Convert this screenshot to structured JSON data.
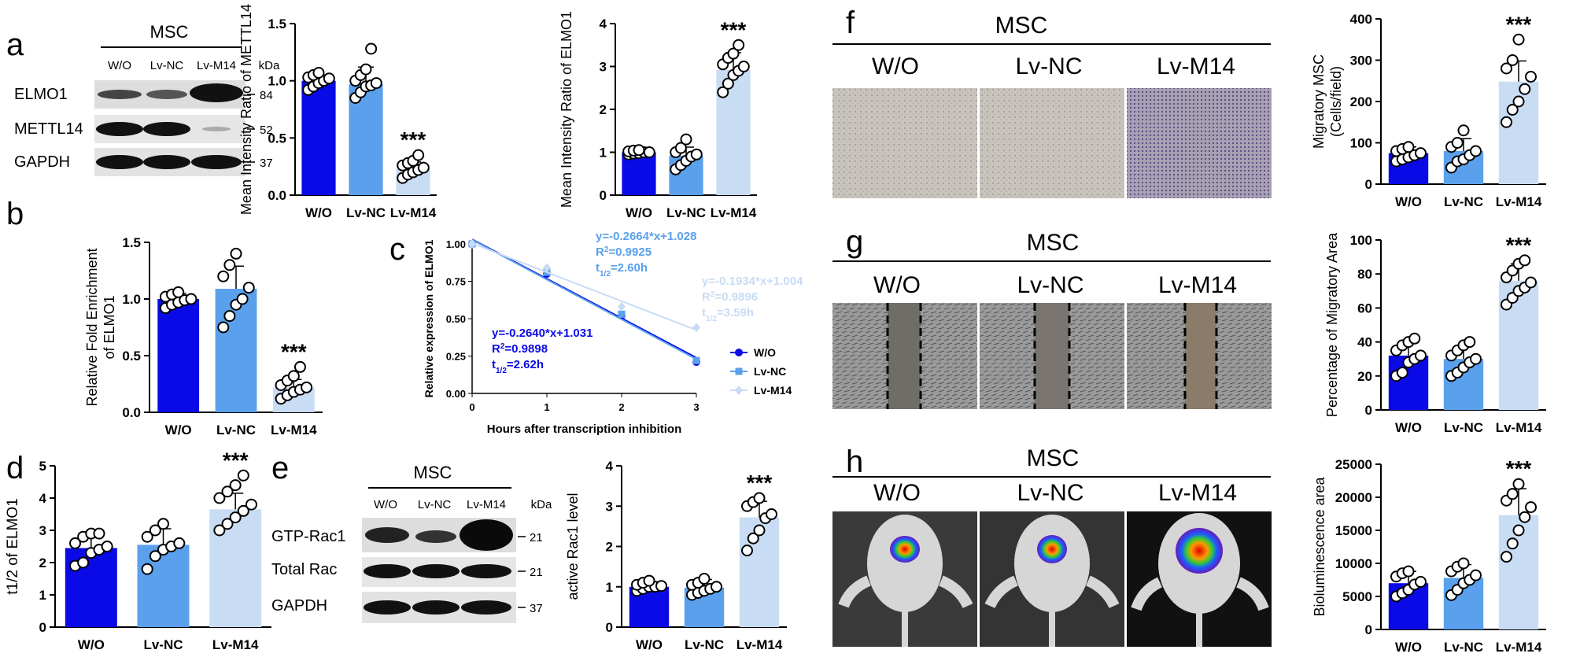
{
  "colors": {
    "wo": "#0a0ae6",
    "nc": "#5aa0ec",
    "m14": "#c8dcf4",
    "star": "#000000"
  },
  "panel_letters": [
    "a",
    "b",
    "c",
    "d",
    "e",
    "f",
    "g",
    "h"
  ],
  "blot_a": {
    "title": "MSC",
    "lanes": [
      "W/O",
      "Lv-NC",
      "Lv-M14"
    ],
    "kda_label": "kDa",
    "rows": [
      {
        "label": "ELMO1",
        "kda": "84"
      },
      {
        "label": "METTL14",
        "kda": "52"
      },
      {
        "label": "GAPDH",
        "kda": "37"
      }
    ]
  },
  "blot_e": {
    "title": "MSC",
    "lanes": [
      "W/O",
      "Lv-NC",
      "Lv-M14"
    ],
    "kda_label": "kDa",
    "rows": [
      {
        "label": "GTP-Rac1",
        "kda": "21"
      },
      {
        "label": "Total Rac",
        "kda": "21"
      },
      {
        "label": "GAPDH",
        "kda": "37"
      }
    ]
  },
  "images_f": {
    "title": "MSC",
    "lanes": [
      "W/O",
      "Lv-NC",
      "Lv-M14"
    ]
  },
  "images_g": {
    "title": "MSC",
    "lanes": [
      "W/O",
      "Lv-NC",
      "Lv-M14"
    ]
  },
  "images_h": {
    "title": "MSC",
    "lanes": [
      "W/O",
      "Lv-NC",
      "Lv-M14"
    ]
  },
  "chart_data": [
    {
      "id": "a1",
      "type": "bar",
      "categories": [
        "W/O",
        "Lv-NC",
        "Lv-M14"
      ],
      "values": [
        1.0,
        0.97,
        0.23
      ],
      "errors": [
        0.05,
        0.15,
        0.06
      ],
      "ylabel": "Mean Intensity Ratio of METTL14",
      "ylim": [
        0,
        1.5
      ],
      "yticks": [
        "0.0",
        "0.5",
        "1.0",
        "1.5"
      ],
      "star": "***",
      "star_index": 2,
      "points": [
        [
          0.92,
          0.95,
          0.98,
          1.0,
          1.02,
          1.03,
          1.05,
          1.07
        ],
        [
          0.85,
          0.9,
          0.95,
          0.96,
          0.98,
          1.0,
          1.05,
          1.1,
          1.28
        ],
        [
          0.15,
          0.18,
          0.2,
          0.22,
          0.24,
          0.26,
          0.28,
          0.3,
          0.35
        ]
      ]
    },
    {
      "id": "a2",
      "type": "bar",
      "categories": [
        "W/O",
        "Lv-NC",
        "Lv-M14"
      ],
      "values": [
        1.0,
        0.92,
        2.92
      ],
      "errors": [
        0.05,
        0.2,
        0.4
      ],
      "ylabel": "Mean Intensity Ratio of ELMO1",
      "ylim": [
        0,
        4
      ],
      "yticks": [
        "0",
        "1",
        "2",
        "3",
        "4"
      ],
      "star": "***",
      "star_index": 2,
      "points": [
        [
          0.95,
          0.97,
          0.98,
          1.0,
          1.0,
          1.02,
          1.04,
          1.05
        ],
        [
          0.6,
          0.7,
          0.8,
          0.9,
          0.95,
          1.0,
          1.1,
          1.3
        ],
        [
          2.4,
          2.6,
          2.8,
          2.9,
          3.0,
          3.05,
          3.2,
          3.3,
          3.5
        ]
      ]
    },
    {
      "id": "b",
      "type": "bar",
      "categories": [
        "W/O",
        "Lv-NC",
        "Lv-M14"
      ],
      "values": [
        1.0,
        1.09,
        0.22
      ],
      "errors": [
        0.05,
        0.2,
        0.07
      ],
      "ylabel": "Relative Fold Enrichment of ELMO1",
      "ylim": [
        0,
        1.5
      ],
      "yticks": [
        "0.0",
        "0.5",
        "1.0",
        "1.5"
      ],
      "star": "***",
      "star_index": 2,
      "points": [
        [
          0.92,
          0.95,
          0.97,
          0.99,
          1.0,
          1.02,
          1.04,
          1.06
        ],
        [
          0.75,
          0.85,
          0.95,
          1.0,
          1.1,
          1.2,
          1.3,
          1.4
        ],
        [
          0.12,
          0.15,
          0.18,
          0.2,
          0.22,
          0.24,
          0.28,
          0.32,
          0.4
        ]
      ]
    },
    {
      "id": "c",
      "type": "line",
      "xlabel": "Hours after transcription inhibition",
      "ylabel": "Relative expression of ELMO1",
      "x": [
        0,
        1,
        2,
        3
      ],
      "xlim": [
        0,
        3
      ],
      "ylim": [
        0,
        1
      ],
      "xticks": [
        "0",
        "1",
        "2",
        "3"
      ],
      "yticks": [
        "0.00",
        "0.25",
        "0.50",
        "0.75",
        "1.00"
      ],
      "series": [
        {
          "name": "W/O",
          "values": [
            1.0,
            0.8,
            0.52,
            0.21
          ],
          "fit": [
            -0.264,
            1.031
          ],
          "eq": "y=-0.2640*x+1.031",
          "r2": "0.9898",
          "half": "2.62h"
        },
        {
          "name": "Lv-NC",
          "values": [
            1.0,
            0.81,
            0.53,
            0.22
          ],
          "fit": [
            -0.2664,
            1.028
          ],
          "eq": "y=-0.2664*x+1.028",
          "r2": "0.9925",
          "half": "2.60h"
        },
        {
          "name": "Lv-M14",
          "values": [
            1.0,
            0.84,
            0.58,
            0.44
          ],
          "fit": [
            -0.1934,
            1.004
          ],
          "eq": "y=-0.1934*x+1.004",
          "r2": "0.9896",
          "half": "3.59h"
        }
      ]
    },
    {
      "id": "d",
      "type": "bar",
      "categories": [
        "W/O",
        "Lv-NC",
        "Lv-M14"
      ],
      "values": [
        2.45,
        2.55,
        3.65
      ],
      "errors": [
        0.4,
        0.5,
        0.5
      ],
      "ylabel": "t1/2 of ELMO1",
      "ylim": [
        0,
        5
      ],
      "yticks": [
        "0",
        "1",
        "2",
        "3",
        "4",
        "5"
      ],
      "star": "***",
      "star_index": 2,
      "points": [
        [
          1.9,
          2.0,
          2.3,
          2.4,
          2.5,
          2.6,
          2.8,
          2.9,
          2.9
        ],
        [
          1.8,
          2.2,
          2.4,
          2.5,
          2.6,
          2.8,
          3.0,
          3.2
        ],
        [
          3.0,
          3.2,
          3.4,
          3.6,
          3.8,
          4.0,
          4.2,
          4.4,
          4.7
        ]
      ]
    },
    {
      "id": "e",
      "type": "bar",
      "categories": [
        "W/O",
        "Lv-NC",
        "Lv-M14"
      ],
      "values": [
        1.0,
        0.98,
        2.72
      ],
      "errors": [
        0.1,
        0.2,
        0.4
      ],
      "ylabel": "active Rac1 level",
      "ylim": [
        0,
        4
      ],
      "yticks": [
        "0",
        "1",
        "2",
        "3",
        "4"
      ],
      "star": "***",
      "star_index": 2,
      "points": [
        [
          0.9,
          0.95,
          1.0,
          1.0,
          1.02,
          1.05,
          1.1,
          1.15
        ],
        [
          0.8,
          0.85,
          0.9,
          0.95,
          1.0,
          1.05,
          1.1,
          1.2
        ],
        [
          1.9,
          2.2,
          2.4,
          2.7,
          2.8,
          3.0,
          3.1,
          3.2
        ]
      ]
    },
    {
      "id": "f",
      "type": "bar",
      "categories": [
        "W/O",
        "Lv-NC",
        "Lv-M14"
      ],
      "values": [
        75,
        80,
        248
      ],
      "errors": [
        15,
        30,
        50
      ],
      "ylabel": "Migratory MSC (Cells/field)",
      "ylim": [
        0,
        400
      ],
      "yticks": [
        "0",
        "100",
        "200",
        "300",
        "400"
      ],
      "star": "***",
      "star_index": 2,
      "points": [
        [
          55,
          60,
          65,
          70,
          75,
          80,
          85,
          90
        ],
        [
          40,
          55,
          60,
          70,
          80,
          90,
          100,
          130
        ],
        [
          150,
          180,
          200,
          230,
          260,
          280,
          300,
          350
        ]
      ]
    },
    {
      "id": "g",
      "type": "bar",
      "categories": [
        "W/O",
        "Lv-NC",
        "Lv-M14"
      ],
      "values": [
        32,
        30,
        76
      ],
      "errors": [
        8,
        8,
        10
      ],
      "ylabel": "Percentage of Migratory Area",
      "ylim": [
        0,
        100
      ],
      "yticks": [
        "0",
        "20",
        "40",
        "60",
        "80",
        "100"
      ],
      "star": "***",
      "star_index": 2,
      "points": [
        [
          20,
          22,
          28,
          30,
          32,
          35,
          38,
          40,
          42
        ],
        [
          20,
          22,
          25,
          28,
          30,
          32,
          35,
          38,
          40
        ],
        [
          62,
          66,
          70,
          72,
          75,
          78,
          82,
          86,
          88
        ]
      ]
    },
    {
      "id": "h",
      "type": "bar",
      "categories": [
        "W/O",
        "Lv-NC",
        "Lv-M14"
      ],
      "values": [
        7000,
        7800,
        17300
      ],
      "errors": [
        1800,
        2000,
        4000
      ],
      "ylabel": "Bioluminescence area",
      "ylim": [
        0,
        25000
      ],
      "yticks": [
        "0",
        "5000",
        "10000",
        "15000",
        "20000",
        "25000"
      ],
      "star": "***",
      "star_index": 2,
      "points": [
        [
          5000,
          5500,
          6000,
          6800,
          7200,
          8000,
          8500,
          8800
        ],
        [
          5200,
          6000,
          7000,
          7500,
          8200,
          8800,
          9500,
          10000
        ],
        [
          11000,
          13000,
          15000,
          17000,
          18500,
          19500,
          20500,
          22000
        ]
      ]
    }
  ]
}
